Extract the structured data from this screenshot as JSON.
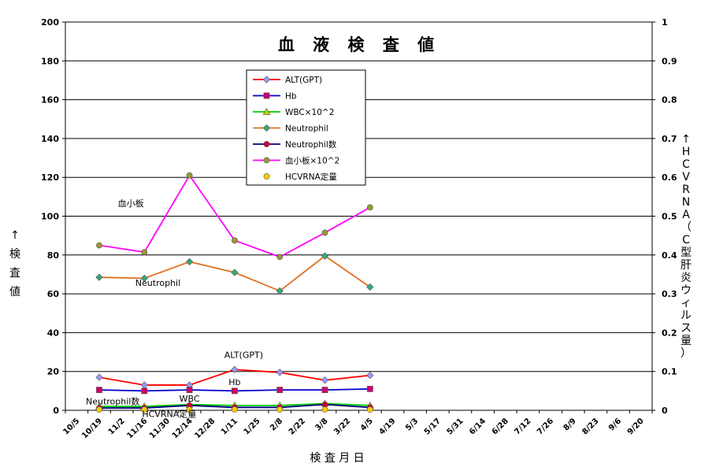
{
  "chart_data": {
    "type": "line",
    "title": "血 液 検 査 値",
    "xlabel": "検 査 月 日",
    "ylabel": "↑検査値",
    "y2label": "↑HCVRNA（C型肝炎ウィルス量）",
    "ylim": [
      0,
      200
    ],
    "y_ticks": [
      0,
      20,
      40,
      60,
      80,
      100,
      120,
      140,
      160,
      180,
      200
    ],
    "y2lim": [
      0,
      1
    ],
    "y2_tick_labels": [
      "0",
      "0.1",
      "0.2",
      "0.3",
      "0.4",
      "0.5",
      "0.6",
      "0.7",
      "0.8",
      "0.9",
      "1"
    ],
    "categories": [
      "10/5",
      "10/19",
      "11/2",
      "11/16",
      "11/30",
      "12/14",
      "12/28",
      "1/11",
      "1/25",
      "2/8",
      "2/22",
      "3/8",
      "3/22",
      "4/5",
      "4/19",
      "5/3",
      "5/17",
      "5/31",
      "6/14",
      "6/28",
      "7/12",
      "7/26",
      "8/9",
      "8/23",
      "9/6",
      "9/20"
    ],
    "grid": true,
    "legend_position": "top-center",
    "series": [
      {
        "name": "ALT(GPT)",
        "color": "#ff0000",
        "marker": "diamond",
        "marker_color": "#9999ff",
        "points": [
          [
            1,
            17
          ],
          [
            3,
            13
          ],
          [
            5,
            13
          ],
          [
            7,
            21
          ],
          [
            9,
            19.5
          ],
          [
            11,
            15.5
          ],
          [
            13,
            18
          ]
        ]
      },
      {
        "name": "Hb",
        "color": "#0000cc",
        "marker": "square",
        "marker_color": "#cc0066",
        "points": [
          [
            1,
            10.5
          ],
          [
            3,
            10
          ],
          [
            5,
            10.5
          ],
          [
            7,
            10
          ],
          [
            9,
            10.5
          ],
          [
            11,
            10.5
          ],
          [
            13,
            11
          ]
        ]
      },
      {
        "name": "WBC×10^2",
        "color": "#00cc00",
        "marker": "triangle",
        "marker_color": "#cccc00",
        "points": [
          [
            1,
            2
          ],
          [
            3,
            2
          ],
          [
            5,
            3
          ],
          [
            7,
            2.5
          ],
          [
            9,
            2.5
          ],
          [
            11,
            3.5
          ],
          [
            13,
            2.5
          ]
        ]
      },
      {
        "name": "Neutrophil",
        "color": "#e07020",
        "marker": "diamond",
        "marker_color": "#33aa77",
        "points": [
          [
            1,
            68.5
          ],
          [
            3,
            68
          ],
          [
            5,
            76.5
          ],
          [
            7,
            71
          ],
          [
            9,
            61.5
          ],
          [
            11,
            79.5
          ],
          [
            13,
            63.5
          ]
        ]
      },
      {
        "name": "Neutrophil数",
        "color": "#000080",
        "marker": "circle",
        "marker_color": "#cc0033",
        "points": [
          [
            1,
            1.2
          ],
          [
            3,
            1.2
          ],
          [
            5,
            2.5
          ],
          [
            7,
            1.5
          ],
          [
            9,
            1.5
          ],
          [
            11,
            3
          ],
          [
            13,
            1.5
          ]
        ]
      },
      {
        "name": "血小板×10^2",
        "color": "#ff00ff",
        "marker": "circle",
        "marker_color": "#999933",
        "points": [
          [
            1,
            85
          ],
          [
            3,
            81.5
          ],
          [
            5,
            121
          ],
          [
            7,
            87.5
          ],
          [
            9,
            79
          ],
          [
            11,
            91.5
          ],
          [
            13,
            104.5
          ]
        ]
      },
      {
        "name": "HCVRNA定量",
        "color": "#ff9900",
        "marker": "circle",
        "marker_color": "#ffcc00",
        "line": false,
        "axis": "y2",
        "points": [
          [
            1,
            0.002
          ],
          [
            3,
            0.002
          ],
          [
            5,
            0.002
          ],
          [
            7,
            0.002
          ],
          [
            9,
            0.002
          ],
          [
            11,
            0.002
          ],
          [
            13,
            0.002
          ]
        ]
      }
    ],
    "annotations": [
      {
        "text": "血小板",
        "x": 2.4,
        "y": 105
      },
      {
        "text": "Neutrophil",
        "x": 3.6,
        "y": 64
      },
      {
        "text": "ALT(GPT)",
        "x": 7.4,
        "y": 27
      },
      {
        "text": "Hb",
        "x": 7.0,
        "y": 13
      },
      {
        "text": "WBC",
        "x": 5.0,
        "y": 4.5
      },
      {
        "text": "Neutrophil数",
        "x": 1.6,
        "y": 3.0
      },
      {
        "text": "HCVRNA定量",
        "x": 4.1,
        "y": -3.5
      }
    ]
  }
}
